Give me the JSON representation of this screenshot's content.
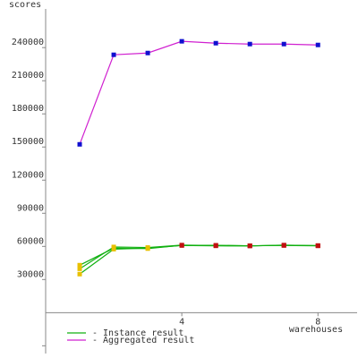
{
  "chart_data": {
    "type": "line",
    "y_label": "scores",
    "x_label": "warehouses",
    "x": [
      1,
      2,
      3,
      4,
      5,
      6,
      7,
      8
    ],
    "series": [
      {
        "name": "- Instance result",
        "color": "#10b010",
        "marker_colors": [
          "#e8c000",
          "#e8c000",
          "#e8c000",
          "#c01010",
          "#c01010",
          "#c01010",
          "#c01010",
          "#c01010"
        ],
        "values": [
          43000,
          58400,
          58000,
          61000,
          61000,
          60500,
          61000,
          60800
        ]
      },
      {
        "color": "#10b010",
        "marker_colors": [
          "#e8c000",
          "#e8c000",
          "#e8c000",
          "#c01010",
          "#c01010",
          "#c01010",
          "#c01010",
          "#c01010"
        ],
        "values": [
          39700,
          59500,
          59000,
          61200,
          60800,
          60600,
          60800,
          60500
        ]
      },
      {
        "color": "#10b010",
        "marker_colors": [
          "#e8c000",
          "#e8c000",
          "#e8c000",
          "#c01010",
          "#c01010",
          "#c01010",
          "#c01010",
          "#c01010"
        ],
        "values": [
          34900,
          57500,
          58500,
          60800,
          60500,
          60400,
          61200,
          60600
        ]
      },
      {
        "name": "- Aggregated result",
        "color": "#d020d0",
        "marker_colors": [
          "#1010d0",
          "#1010d0",
          "#1010d0",
          "#1010d0",
          "#1010d0",
          "#1010d0",
          "#1010d0",
          "#1010d0"
        ],
        "values": [
          152400,
          233500,
          235100,
          245700,
          244000,
          243200,
          243200,
          242400
        ]
      }
    ],
    "xlim": [
      0,
      9.15
    ],
    "xticks": [
      4,
      8
    ],
    "ylim": [
      -37000,
      275000
    ],
    "yticks": [
      {
        "value": -30000,
        "label": null
      },
      30000,
      60000,
      90000,
      120000,
      150000,
      180000,
      210000,
      240000
    ],
    "grid": false
  }
}
